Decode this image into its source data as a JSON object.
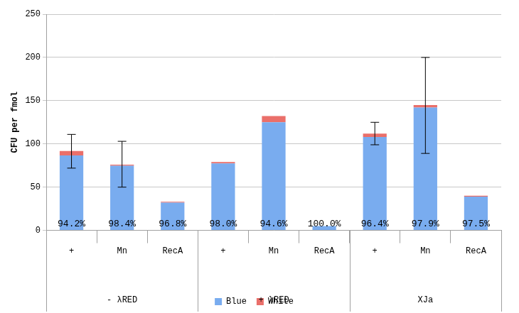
{
  "chart_data": {
    "type": "bar",
    "stacked": true,
    "categories": [
      "+",
      "Mn",
      "RecA",
      "+",
      "Mn",
      "RecA",
      "+",
      "Mn",
      "RecA"
    ],
    "groups": [
      {
        "name": "- λRED",
        "count": 3
      },
      {
        "name": "+ λRED",
        "count": 3
      },
      {
        "name": "XJa",
        "count": 3
      }
    ],
    "series": [
      {
        "name": "Blue",
        "color": "#79acef",
        "values": [
          86.6,
          74.8,
          32.0,
          77.4,
          125.0,
          5.0,
          108.0,
          142.0,
          39.0
        ]
      },
      {
        "name": "White",
        "color": "#ea6f6a",
        "values": [
          5.3,
          1.2,
          1.1,
          1.6,
          7.2,
          0,
          4.0,
          3.0,
          1.0
        ]
      }
    ],
    "error_bars": [
      [
        72,
        111
      ],
      [
        50,
        103
      ],
      null,
      null,
      null,
      null,
      [
        99,
        125
      ],
      [
        89,
        200
      ],
      null
    ],
    "annotations": [
      "94.2%",
      "98.4%",
      "96.8%",
      "98.0%",
      "94.6%",
      "100.0%",
      "96.4%",
      "97.9%",
      "97.5%"
    ],
    "y_label": "CFU per fmol",
    "ylim": [
      0,
      250
    ],
    "yticks": [
      0,
      50,
      100,
      150,
      200,
      250
    ],
    "grid": true,
    "legend": "bottom"
  }
}
